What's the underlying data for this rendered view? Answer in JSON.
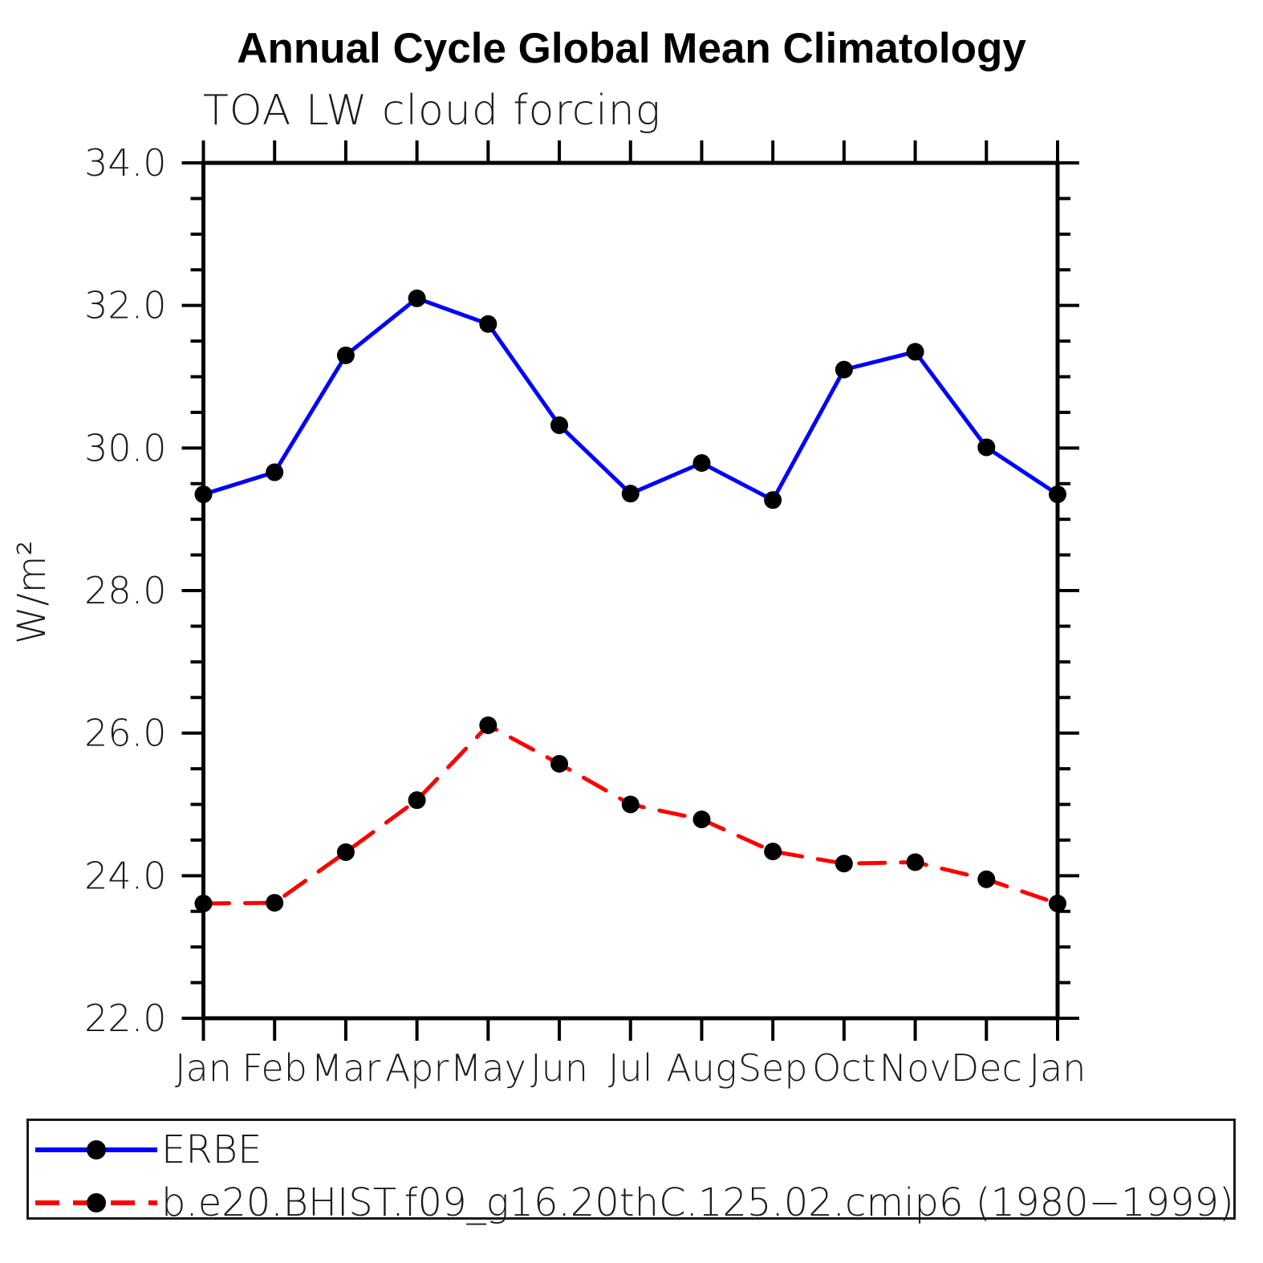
{
  "chart_data": {
    "type": "line",
    "title": "Annual Cycle Global Mean Climatology",
    "subtitle": "TOA LW cloud forcing",
    "ylabel": "W/m²",
    "xlabel": "",
    "categories": [
      "Jan",
      "Feb",
      "Mar",
      "Apr",
      "May",
      "Jun",
      "Jul",
      "Aug",
      "Sep",
      "Oct",
      "Nov",
      "Dec",
      "Jan"
    ],
    "ylim": [
      22.0,
      34.0
    ],
    "ytick_major": 2.0,
    "ytick_minor": 0.5,
    "grid": false,
    "legend_position": "bottom-box",
    "series": [
      {
        "name": "ERBE",
        "color": "#0000ff",
        "line_style": "solid",
        "marker": "filled-circle",
        "marker_color": "#000000",
        "values": [
          29.35,
          29.66,
          31.3,
          32.1,
          31.74,
          30.32,
          29.36,
          29.79,
          29.27,
          31.1,
          31.35,
          30.01,
          29.35
        ]
      },
      {
        "name": "b.e20.BHIST.f09_g16.20thC.125.02.cmip6 (1980−1999)",
        "color": "#ff0000",
        "line_style": "dashed",
        "marker": "filled-circle",
        "marker_color": "#000000",
        "values": [
          23.61,
          23.62,
          24.33,
          25.06,
          26.11,
          25.57,
          25.0,
          24.79,
          24.34,
          24.17,
          24.19,
          23.95,
          23.61
        ]
      }
    ],
    "axis_color": "#000000",
    "text_color": "#1c1c1c"
  }
}
